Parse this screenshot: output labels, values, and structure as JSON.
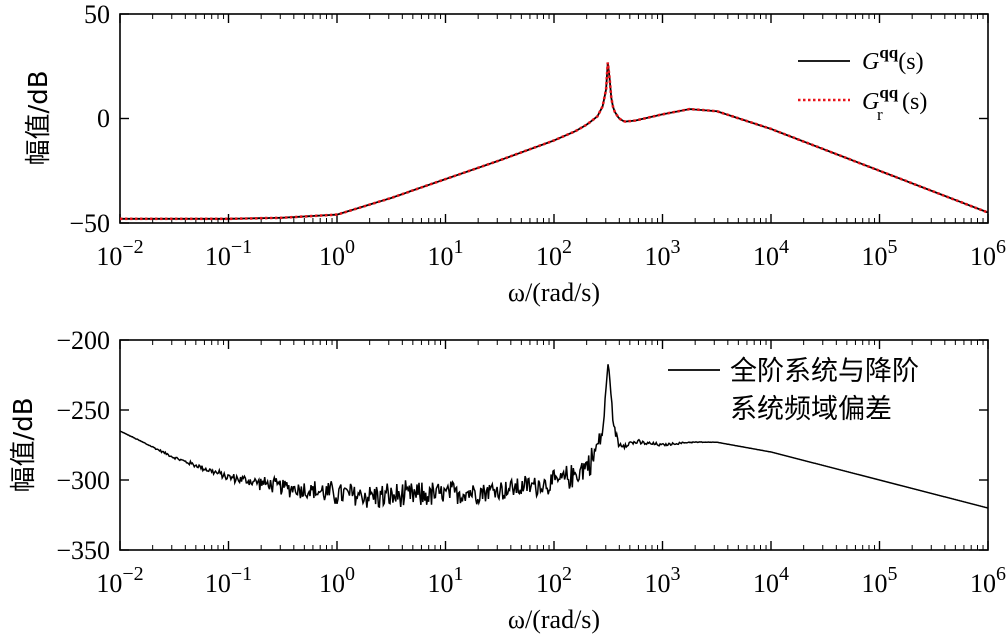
{
  "chart_data": [
    {
      "type": "line",
      "title": "",
      "xlabel": "ω/(rad/s)",
      "ylabel": "幅值/dB",
      "xscale": "log",
      "xlim_exp": [
        -2,
        6
      ],
      "ylim": [
        -50,
        50
      ],
      "yticks": [
        -50,
        0,
        50
      ],
      "ytick_labels": [
        "−50",
        "0",
        "50"
      ],
      "xtick_labels": [
        "10",
        "10",
        "10",
        "10",
        "10",
        "10",
        "10",
        "10",
        "10"
      ],
      "xtick_exponents": [
        "−2",
        "−1",
        "0",
        "1",
        "2",
        "3",
        "4",
        "5",
        "6"
      ],
      "legend_position": "top-right",
      "series": [
        {
          "name": "G^qq(s)",
          "legend_main": "G",
          "legend_sup": "qq",
          "legend_tail": "(s)",
          "color": "#000000",
          "style": "solid",
          "x_exp": [
            -2,
            -1.5,
            -1,
            -0.5,
            0,
            0.5,
            1,
            1.5,
            2,
            2.2,
            2.3,
            2.4,
            2.45,
            2.48,
            2.5,
            2.52,
            2.55,
            2.6,
            2.65,
            2.75,
            3,
            3.25,
            3.5,
            4,
            4.5,
            5,
            5.5,
            6
          ],
          "y": [
            -48,
            -48,
            -48,
            -47.5,
            -46,
            -38,
            -29,
            -20,
            -10.5,
            -6,
            -3,
            1,
            6,
            14,
            30,
            12,
            4,
            0,
            -1.5,
            -1,
            2,
            4.5,
            3.5,
            -5,
            -15,
            -25,
            -35,
            -45
          ]
        },
        {
          "name": "G_r^qq(s)",
          "legend_main": "G",
          "legend_sup": "qq",
          "legend_sub": "r",
          "legend_tail": "(s)",
          "color": "#e8141a",
          "style": "dotted",
          "x_exp": [
            -2,
            -1.5,
            -1,
            -0.5,
            0,
            0.5,
            1,
            1.5,
            2,
            2.2,
            2.3,
            2.4,
            2.45,
            2.48,
            2.5,
            2.52,
            2.55,
            2.6,
            2.65,
            2.75,
            3,
            3.25,
            3.5,
            4,
            4.5,
            5,
            5.5,
            6
          ],
          "y": [
            -48,
            -48,
            -48,
            -47.5,
            -46,
            -38,
            -29,
            -20,
            -10.5,
            -6,
            -3,
            1,
            6,
            14,
            30,
            12,
            4,
            0,
            -1.5,
            -1,
            2,
            4.5,
            3.5,
            -5,
            -15,
            -25,
            -35,
            -45
          ]
        }
      ]
    },
    {
      "type": "line",
      "title": "",
      "xlabel": "ω/(rad/s)",
      "ylabel": "幅值/dB",
      "xscale": "log",
      "xlim_exp": [
        -2,
        6
      ],
      "ylim": [
        -350,
        -200
      ],
      "yticks": [
        -350,
        -300,
        -250,
        -200
      ],
      "ytick_labels": [
        "−350",
        "−300",
        "−250",
        "−200"
      ],
      "xtick_labels": [
        "10",
        "10",
        "10",
        "10",
        "10",
        "10",
        "10",
        "10",
        "10"
      ],
      "xtick_exponents": [
        "−2",
        "−1",
        "0",
        "1",
        "2",
        "3",
        "4",
        "5",
        "6"
      ],
      "legend_position": "top-right",
      "series": [
        {
          "name": "全阶系统与降阶系统频域偏差",
          "legend_line1": "全阶系统与降阶",
          "legend_line2": "系统频域偏差",
          "color": "#000000",
          "style": "solid",
          "x_exp": [
            -2,
            -1.5,
            -1,
            -0.5,
            0,
            0.5,
            1,
            1.5,
            2,
            2.2,
            2.35,
            2.45,
            2.5,
            2.55,
            2.6,
            2.75,
            3,
            3.25,
            3.5,
            4,
            4.5,
            5,
            5.5,
            6
          ],
          "y": [
            -265,
            -284,
            -298,
            -305,
            -310,
            -312,
            -310,
            -307,
            -302,
            -296,
            -286,
            -265,
            -215,
            -262,
            -275,
            -273,
            -275,
            -273,
            -273,
            -280,
            -290,
            -300,
            -310,
            -320
          ],
          "noise_amplitude": [
            0,
            1,
            3,
            6,
            9,
            10,
            9,
            8,
            8,
            9,
            10,
            6,
            0,
            3,
            3,
            2,
            1,
            0.5,
            0,
            0,
            0,
            0,
            0,
            0
          ]
        }
      ]
    }
  ]
}
